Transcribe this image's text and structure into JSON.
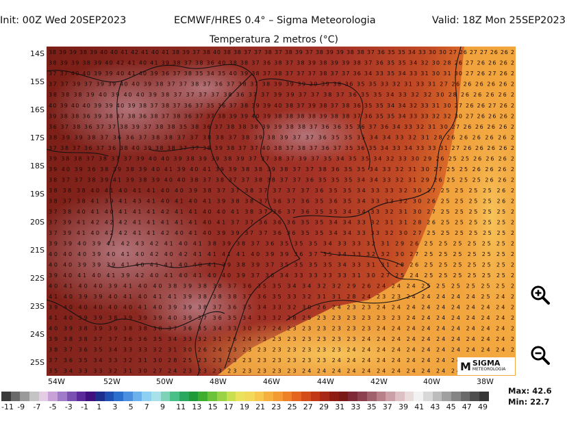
{
  "header": {
    "init": "Init: 00Z Wed 20SEP2023",
    "model": "ECMWF/HRES 0.4° – Sigma Meteorologia",
    "valid": "Valid: 18Z Mon 25SEP2023"
  },
  "subtitle": "Temperatura 2 metros (°C)",
  "lat_labels": [
    "14S",
    "15S",
    "16S",
    "17S",
    "18S",
    "19S",
    "20S",
    "21S",
    "22S",
    "23S",
    "24S",
    "25S"
  ],
  "lon_labels": [
    "54W",
    "52W",
    "50W",
    "48W",
    "46W",
    "44W",
    "42W",
    "40W",
    "38W"
  ],
  "temp_grid": [
    [
      38,
      39,
      39,
      38,
      39,
      40,
      40,
      41,
      42,
      41,
      40,
      41,
      38,
      39,
      37,
      38,
      40,
      38,
      38,
      37,
      37,
      38,
      37,
      38,
      39,
      37,
      38,
      39,
      39,
      38,
      38,
      37,
      36,
      35,
      35,
      34,
      33,
      30,
      30,
      27,
      26,
      27,
      27,
      26,
      26,
      2
    ],
    [
      38,
      39,
      39,
      38,
      39,
      40,
      42,
      41,
      40,
      41,
      39,
      38,
      37,
      38,
      36,
      40,
      38,
      38,
      37,
      36,
      38,
      37,
      38,
      39,
      38,
      39,
      39,
      38,
      37,
      36,
      35,
      35,
      34,
      32,
      30,
      28,
      26,
      27,
      26,
      26,
      26,
      2
    ],
    [
      37,
      37,
      40,
      40,
      39,
      39,
      40,
      41,
      40,
      39,
      36,
      37,
      38,
      35,
      34,
      35,
      40,
      39,
      38,
      37,
      38,
      37,
      37,
      37,
      38,
      37,
      37,
      36,
      34,
      33,
      35,
      34,
      33,
      31,
      30,
      31,
      30,
      27,
      26,
      27,
      26,
      2
    ],
    [
      37,
      37,
      39,
      37,
      39,
      39,
      40,
      40,
      39,
      38,
      37,
      37,
      38,
      37,
      36,
      37,
      38,
      37,
      38,
      39,
      39,
      39,
      39,
      39,
      38,
      36,
      35,
      35,
      33,
      32,
      31,
      33,
      31,
      27,
      26,
      26,
      26,
      26,
      26,
      2
    ],
    [
      38,
      38,
      38,
      39,
      40,
      39,
      40,
      40,
      39,
      38,
      37,
      37,
      37,
      37,
      38,
      36,
      37,
      37,
      39,
      39,
      37,
      37,
      38,
      37,
      36,
      35,
      35,
      34,
      33,
      32,
      32,
      30,
      28,
      26,
      26,
      26,
      26,
      2
    ],
    [
      40,
      39,
      40,
      40,
      39,
      39,
      40,
      39,
      38,
      37,
      38,
      37,
      36,
      37,
      35,
      36,
      37,
      38,
      39,
      39,
      40,
      38,
      37,
      39,
      38,
      37,
      38,
      36,
      35,
      35,
      34,
      34,
      32,
      33,
      31,
      30,
      27,
      26,
      26,
      27,
      26,
      2
    ],
    [
      39,
      38,
      38,
      36,
      39,
      38,
      37,
      38,
      36,
      38,
      37,
      38,
      36,
      37,
      37,
      38,
      39,
      39,
      40,
      39,
      38,
      38,
      38,
      38,
      39,
      38,
      38,
      37,
      36,
      35,
      35,
      34,
      33,
      33,
      32,
      32,
      30,
      27,
      26,
      26,
      26,
      2
    ],
    [
      36,
      37,
      38,
      36,
      37,
      37,
      38,
      39,
      37,
      38,
      38,
      35,
      38,
      36,
      37,
      38,
      38,
      38,
      39,
      39,
      38,
      38,
      37,
      36,
      36,
      35,
      36,
      37,
      36,
      34,
      33,
      32,
      31,
      30,
      27,
      26,
      26,
      26,
      26,
      2
    ],
    [
      38,
      39,
      39,
      38,
      37,
      36,
      36,
      37,
      38,
      38,
      37,
      37,
      38,
      38,
      37,
      38,
      39,
      38,
      39,
      37,
      37,
      36,
      35,
      35,
      35,
      34,
      34,
      33,
      32,
      31,
      28,
      26,
      26,
      26,
      26,
      26,
      2
    ],
    [
      37,
      38,
      37,
      36,
      37,
      36,
      38,
      40,
      39,
      38,
      38,
      37,
      37,
      38,
      39,
      38,
      37,
      37,
      40,
      38,
      37,
      38,
      37,
      36,
      37,
      35,
      36,
      35,
      34,
      33,
      34,
      33,
      33,
      31,
      27,
      26,
      26,
      26,
      26,
      2
    ],
    [
      39,
      38,
      38,
      37,
      38,
      37,
      37,
      39,
      40,
      40,
      39,
      38,
      39,
      39,
      38,
      39,
      37,
      37,
      38,
      37,
      39,
      37,
      35,
      34,
      35,
      35,
      34,
      32,
      33,
      30,
      29,
      26,
      25,
      25,
      26,
      26,
      26,
      2
    ],
    [
      39,
      40,
      39,
      36,
      38,
      39,
      38,
      39,
      40,
      41,
      39,
      40,
      41,
      39,
      39,
      38,
      38,
      39,
      38,
      37,
      37,
      38,
      36,
      35,
      35,
      34,
      33,
      32,
      31,
      30,
      27,
      25,
      25,
      26,
      26,
      26,
      2
    ],
    [
      38,
      37,
      37,
      38,
      39,
      41,
      39,
      38,
      39,
      40,
      40,
      38,
      37,
      38,
      37,
      37,
      38,
      38,
      37,
      37,
      36,
      35,
      35,
      35,
      34,
      34,
      33,
      32,
      31,
      29,
      26,
      25,
      25,
      25,
      26,
      26,
      2
    ],
    [
      38,
      38,
      38,
      40,
      41,
      40,
      41,
      41,
      40,
      40,
      39,
      38,
      37,
      37,
      38,
      37,
      37,
      37,
      37,
      36,
      35,
      35,
      34,
      33,
      33,
      32,
      30,
      27,
      25,
      25,
      25,
      25,
      26,
      2
    ],
    [
      38,
      37,
      38,
      41,
      39,
      41,
      43,
      41,
      40,
      41,
      40,
      41,
      39,
      38,
      38,
      37,
      36,
      37,
      36,
      35,
      36,
      35,
      34,
      33,
      33,
      32,
      30,
      26,
      25,
      25,
      25,
      25,
      26,
      2
    ],
    [
      37,
      38,
      40,
      41,
      40,
      41,
      41,
      41,
      42,
      41,
      41,
      40,
      40,
      41,
      38,
      37,
      36,
      37,
      36,
      35,
      35,
      34,
      34,
      33,
      32,
      31,
      30,
      27,
      25,
      25,
      25,
      25,
      25,
      2
    ],
    [
      37,
      39,
      41,
      42,
      42,
      42,
      41,
      41,
      41,
      41,
      41,
      40,
      41,
      37,
      37,
      36,
      36,
      36,
      35,
      35,
      34,
      34,
      33,
      32,
      31,
      31,
      28,
      26,
      25,
      25,
      25,
      25,
      25,
      2
    ],
    [
      37,
      39,
      41,
      40,
      42,
      42,
      41,
      41,
      42,
      40,
      41,
      40,
      39,
      39,
      37,
      37,
      36,
      36,
      35,
      35,
      34,
      34,
      33,
      33,
      32,
      30,
      27,
      25,
      25,
      25,
      25,
      25,
      25,
      2
    ],
    [
      39,
      39,
      40,
      39,
      41,
      42,
      43,
      42,
      41,
      40,
      41,
      38,
      39,
      38,
      37,
      36,
      35,
      35,
      35,
      34,
      33,
      33,
      32,
      31,
      29,
      26,
      25,
      25,
      25,
      25,
      25,
      25,
      2
    ],
    [
      40,
      40,
      40,
      39,
      40,
      41,
      40,
      42,
      40,
      42,
      41,
      41,
      41,
      41,
      40,
      39,
      39,
      36,
      37,
      35,
      34,
      33,
      32,
      32,
      30,
      27,
      25,
      25,
      25,
      25,
      25,
      25,
      2
    ],
    [
      40,
      40,
      39,
      39,
      39,
      41,
      40,
      41,
      41,
      40,
      40,
      41,
      39,
      38,
      39,
      37,
      35,
      35,
      35,
      35,
      34,
      33,
      31,
      31,
      28,
      26,
      25,
      25,
      25,
      25,
      25,
      25,
      2
    ],
    [
      39,
      40,
      41,
      40,
      41,
      39,
      42,
      40,
      41,
      40,
      41,
      40,
      40,
      39,
      37,
      36,
      34,
      33,
      33,
      33,
      33,
      31,
      30,
      27,
      25,
      24,
      25,
      25,
      25,
      25,
      25,
      25,
      2
    ],
    [
      40,
      41,
      40,
      40,
      39,
      41,
      40,
      40,
      38,
      39,
      38,
      38,
      37,
      36,
      35,
      35,
      34,
      34,
      32,
      32,
      29,
      26,
      24,
      24,
      24,
      25,
      25,
      25,
      25,
      25,
      25,
      2
    ],
    [
      41,
      40,
      39,
      39,
      40,
      41,
      40,
      41,
      41,
      39,
      38,
      38,
      38,
      37,
      36,
      35,
      33,
      32,
      31,
      31,
      28,
      24,
      23,
      23,
      24,
      24,
      24,
      24,
      24,
      25,
      24,
      2
    ],
    [
      39,
      40,
      40,
      40,
      40,
      40,
      41,
      40,
      39,
      39,
      38,
      37,
      36,
      35,
      34,
      33,
      32,
      30,
      26,
      24,
      23,
      23,
      24,
      24,
      24,
      24,
      24,
      24,
      24,
      24,
      24,
      2
    ],
    [
      41,
      40,
      39,
      39,
      38,
      39,
      39,
      39,
      40,
      39,
      37,
      36,
      35,
      34,
      33,
      32,
      28,
      25,
      23,
      23,
      23,
      23,
      23,
      23,
      24,
      24,
      24,
      24,
      24,
      24,
      24,
      2
    ],
    [
      40,
      39,
      38,
      39,
      39,
      38,
      38,
      38,
      37,
      36,
      35,
      34,
      33,
      30,
      27,
      24,
      23,
      23,
      23,
      23,
      23,
      23,
      24,
      24,
      24,
      24,
      24,
      24,
      24,
      24,
      24,
      2
    ],
    [
      39,
      38,
      38,
      37,
      37,
      36,
      36,
      35,
      34,
      33,
      32,
      31,
      26,
      24,
      23,
      23,
      23,
      23,
      23,
      23,
      23,
      24,
      24,
      24,
      24,
      24,
      24,
      24,
      24,
      24,
      24,
      2
    ],
    [
      38,
      37,
      36,
      35,
      34,
      33,
      33,
      32,
      31,
      30,
      26,
      24,
      23,
      23,
      23,
      23,
      23,
      23,
      23,
      23,
      24,
      24,
      24,
      24,
      24,
      24,
      24,
      24,
      24,
      24,
      24,
      2
    ],
    [
      37,
      36,
      35,
      34,
      33,
      32,
      31,
      30,
      28,
      25,
      23,
      23,
      23,
      23,
      23,
      23,
      23,
      23,
      23,
      24,
      24,
      24,
      24,
      24,
      24,
      24,
      24,
      24,
      24,
      24,
      24,
      2
    ],
    [
      35,
      34,
      33,
      33,
      32,
      31,
      30,
      27,
      24,
      23,
      23,
      23,
      23,
      23,
      23,
      23,
      23,
      24,
      24,
      24,
      24,
      24,
      24,
      24,
      24,
      24,
      24,
      24,
      24,
      24,
      24,
      2
    ]
  ],
  "logo": {
    "mark": "M",
    "name": "SIGMA",
    "sub": "METEOROLOGIA"
  },
  "colorbar": {
    "colors": [
      "#3b3b3b",
      "#6a6a6a",
      "#9a9a9a",
      "#c4c4c4",
      "#e4cde4",
      "#c7a1d8",
      "#a07cc8",
      "#7a50b0",
      "#5a2a9a",
      "#40107e",
      "#1e2e8e",
      "#1f4fb0",
      "#2a6fce",
      "#4a8fe0",
      "#6cb0ec",
      "#8ed0f2",
      "#a8e2e8",
      "#7fd2b8",
      "#4bbf88",
      "#2aa860",
      "#1f9a3a",
      "#3fae2e",
      "#6cc238",
      "#9ad446",
      "#c8e050",
      "#eae25a",
      "#f2d95a",
      "#f6c84e",
      "#f6b040",
      "#f49a34",
      "#ee8028",
      "#e4661e",
      "#d44c18",
      "#c03816",
      "#a82a16",
      "#8e1e14",
      "#7a1a18",
      "#7e2a36",
      "#8c4050",
      "#a0606c",
      "#b88088",
      "#cca0a8",
      "#dcc0c4",
      "#ebdcdc",
      "#f2f2f2",
      "#d8d8d8",
      "#bcbcbc",
      "#a0a0a0",
      "#858585",
      "#6a6a6a",
      "#4e4e4e",
      "#363636"
    ],
    "labels": [
      "-11",
      "-9",
      "-7",
      "-5",
      "-3",
      "-1",
      "1",
      "3",
      "5",
      "7",
      "9",
      "11",
      "13",
      "15",
      "17",
      "19",
      "21",
      "23",
      "25",
      "27",
      "29",
      "31",
      "33",
      "35",
      "37",
      "39",
      "41",
      "43",
      "45",
      "47",
      "49"
    ]
  },
  "stats": {
    "max": "Max:  42.6",
    "min": "Min:  22.7"
  }
}
